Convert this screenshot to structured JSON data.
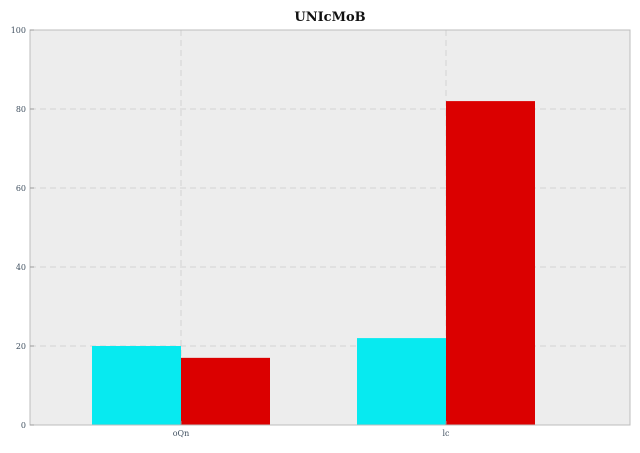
{
  "chart_data": {
    "type": "bar",
    "title": "UNIcMoB",
    "xlabel": "",
    "ylabel": "",
    "categories": [
      "oQn",
      "lc"
    ],
    "series": [
      {
        "values": [
          20,
          17
        ]
      },
      {
        "values": [
          22,
          82
        ]
      }
    ],
    "ylim": [
      0,
      100
    ],
    "yticks": [
      0,
      20,
      40,
      60,
      80,
      100
    ],
    "grid": true,
    "legend": "none",
    "colors": {
      "first_bar": "#07EAF0",
      "second_bar": "#DB0000",
      "background": "#EDEDED",
      "grid": "#D2D2D2"
    }
  }
}
